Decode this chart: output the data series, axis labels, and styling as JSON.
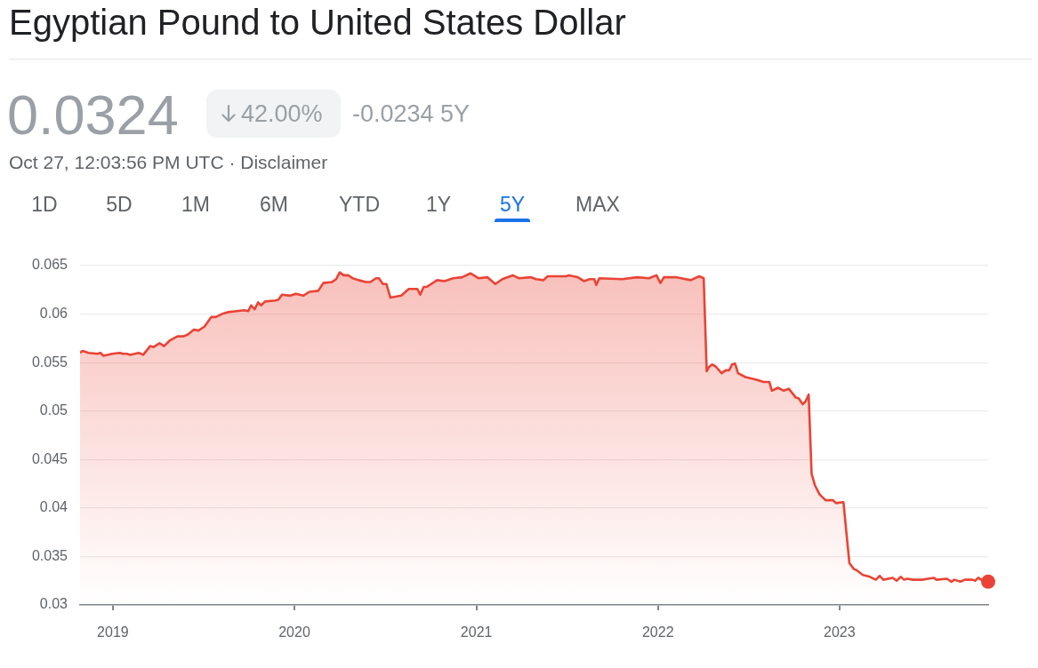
{
  "chart_data": {
    "type": "area",
    "title": "Egyptian Pound to United States Dollar",
    "annotations": [
      "0.0324",
      "42.00%",
      "-0.0234 5Y",
      "Oct 27, 12:03:56 PM UTC · Disclaimer",
      "1D",
      "5D",
      "1M",
      "6M",
      "YTD",
      "1Y",
      "5Y",
      "MAX"
    ],
    "series": [
      {
        "type": "area",
        "color": "#ea4335",
        "x": [
          "2018-10-27",
          "2018-11-01",
          "2018-11-13",
          "2018-12-01",
          "2018-12-07",
          "2018-12-13",
          "2018-12-31",
          "2019-01-15",
          "2019-01-21",
          "2019-01-29",
          "2019-02-05",
          "2019-02-22",
          "2019-03-03",
          "2019-03-17",
          "2019-03-24",
          "2019-04-05",
          "2019-04-14",
          "2019-04-26",
          "2019-05-11",
          "2019-05-23",
          "2019-06-01",
          "2019-06-13",
          "2019-06-22",
          "2019-07-04",
          "2019-07-18",
          "2019-07-27",
          "2019-08-08",
          "2019-08-20",
          "2019-09-07",
          "2019-09-22",
          "2019-09-30",
          "2019-10-06",
          "2019-10-13",
          "2019-10-20",
          "2019-10-26",
          "2019-11-03",
          "2019-11-24",
          "2019-11-30",
          "2019-12-07",
          "2019-12-24",
          "2020-01-04",
          "2020-01-19",
          "2020-01-31",
          "2020-02-18",
          "2020-02-28",
          "2020-03-16",
          "2020-03-25",
          "2020-04-01",
          "2020-04-09",
          "2020-04-18",
          "2020-04-27",
          "2020-05-09",
          "2020-05-24",
          "2020-06-02",
          "2020-06-13",
          "2020-06-19",
          "2020-06-27",
          "2020-07-04",
          "2020-07-12",
          "2020-08-03",
          "2020-08-18",
          "2020-09-04",
          "2020-09-10",
          "2020-09-17",
          "2020-09-23",
          "2020-10-14",
          "2020-10-29",
          "2020-11-15",
          "2020-12-03",
          "2020-12-20",
          "2021-01-05",
          "2021-01-23",
          "2021-02-08",
          "2021-02-22",
          "2021-03-15",
          "2021-03-27",
          "2021-04-20",
          "2021-05-01",
          "2021-05-16",
          "2021-05-24",
          "2021-06-30",
          "2021-07-06",
          "2021-07-24",
          "2021-08-05",
          "2021-08-17",
          "2021-08-26",
          "2021-08-30",
          "2021-09-05",
          "2021-10-21",
          "2021-11-20",
          "2021-12-14",
          "2021-12-29",
          "2022-01-06",
          "2022-01-13",
          "2022-02-06",
          "2022-03-08",
          "2022-03-25",
          "2022-04-03",
          "2022-04-09",
          "2022-04-13",
          "2022-04-20",
          "2022-04-27",
          "2022-05-09",
          "2022-05-17",
          "2022-05-24",
          "2022-05-30",
          "2022-06-05",
          "2022-06-11",
          "2022-06-26",
          "2022-07-20",
          "2022-08-01",
          "2022-08-13",
          "2022-08-18",
          "2022-08-30",
          "2022-09-11",
          "2022-09-21",
          "2022-10-05",
          "2022-10-11",
          "2022-10-19",
          "2022-10-25",
          "2022-10-31",
          "2022-11-06",
          "2022-11-13",
          "2022-11-22",
          "2022-12-04",
          "2022-12-19",
          "2022-12-25",
          "2023-01-09",
          "2023-01-15",
          "2023-01-21",
          "2023-01-30",
          "2023-02-04",
          "2023-02-17",
          "2023-03-03",
          "2023-03-15",
          "2023-03-23",
          "2023-03-30",
          "2023-04-18",
          "2023-04-26",
          "2023-05-04",
          "2023-05-11",
          "2023-05-17",
          "2023-05-29",
          "2023-06-16",
          "2023-06-28",
          "2023-07-10",
          "2023-07-15",
          "2023-08-05",
          "2023-08-14",
          "2023-08-20",
          "2023-09-01",
          "2023-09-10",
          "2023-09-25",
          "2023-10-01",
          "2023-10-07",
          "2023-10-13",
          "2023-10-27"
        ],
        "values": [
          0.056,
          0.0562,
          0.056,
          0.0559,
          0.056,
          0.0557,
          0.0559,
          0.056,
          0.0559,
          0.0559,
          0.0558,
          0.056,
          0.0558,
          0.0567,
          0.0566,
          0.057,
          0.0567,
          0.0573,
          0.0577,
          0.0577,
          0.0579,
          0.0584,
          0.0583,
          0.0587,
          0.0597,
          0.0597,
          0.06,
          0.0602,
          0.0603,
          0.0604,
          0.0603,
          0.0609,
          0.0605,
          0.0612,
          0.0609,
          0.0613,
          0.0614,
          0.0615,
          0.062,
          0.0619,
          0.0621,
          0.0619,
          0.0623,
          0.0624,
          0.0632,
          0.0633,
          0.0636,
          0.0643,
          0.064,
          0.064,
          0.0637,
          0.0635,
          0.0633,
          0.0633,
          0.0637,
          0.0637,
          0.0631,
          0.0631,
          0.0617,
          0.0619,
          0.0626,
          0.0626,
          0.062,
          0.0628,
          0.0628,
          0.0635,
          0.0634,
          0.0637,
          0.0638,
          0.0642,
          0.0637,
          0.0638,
          0.0631,
          0.0636,
          0.064,
          0.0637,
          0.0638,
          0.0636,
          0.0635,
          0.0639,
          0.0639,
          0.064,
          0.0638,
          0.0634,
          0.0636,
          0.0636,
          0.063,
          0.0637,
          0.0636,
          0.0638,
          0.0637,
          0.064,
          0.0632,
          0.0638,
          0.0638,
          0.0635,
          0.0639,
          0.0637,
          0.0541,
          0.0545,
          0.0548,
          0.0546,
          0.0539,
          0.0542,
          0.0542,
          0.0548,
          0.0549,
          0.0539,
          0.0535,
          0.0532,
          0.053,
          0.053,
          0.0521,
          0.0524,
          0.0521,
          0.0523,
          0.0514,
          0.0513,
          0.0507,
          0.051,
          0.0517,
          0.0435,
          0.0423,
          0.0414,
          0.0408,
          0.0408,
          0.0405,
          0.0406,
          0.0374,
          0.0343,
          0.0337,
          0.0336,
          0.0331,
          0.0329,
          0.0326,
          0.033,
          0.0326,
          0.0328,
          0.0325,
          0.0329,
          0.0326,
          0.0327,
          0.0326,
          0.0326,
          0.0327,
          0.0328,
          0.0326,
          0.0327,
          0.0324,
          0.0326,
          0.0324,
          0.0326,
          0.0326,
          0.0325,
          0.0328,
          0.0326,
          0.0324
        ]
      },
      {
        "type": "scatter",
        "color": "#ea4335",
        "marker": "circle",
        "x": [
          "2023-10-27"
        ],
        "values": [
          0.0324
        ]
      }
    ],
    "xlim": [
      "2018-10-27",
      "2023-10-27"
    ],
    "xticks": [
      {
        "value": "2019-01-01",
        "label": "2019"
      },
      {
        "value": "2020-01-01",
        "label": "2020"
      },
      {
        "value": "2021-01-01",
        "label": "2021"
      },
      {
        "value": "2022-01-01",
        "label": "2022"
      },
      {
        "value": "2023-01-01",
        "label": "2023"
      }
    ],
    "ylim": [
      0.03,
      0.065
    ],
    "yticks": [
      0.03,
      0.035,
      0.04,
      0.045,
      0.05,
      0.055,
      0.06,
      0.065
    ],
    "grid": "y",
    "legend": false
  }
}
